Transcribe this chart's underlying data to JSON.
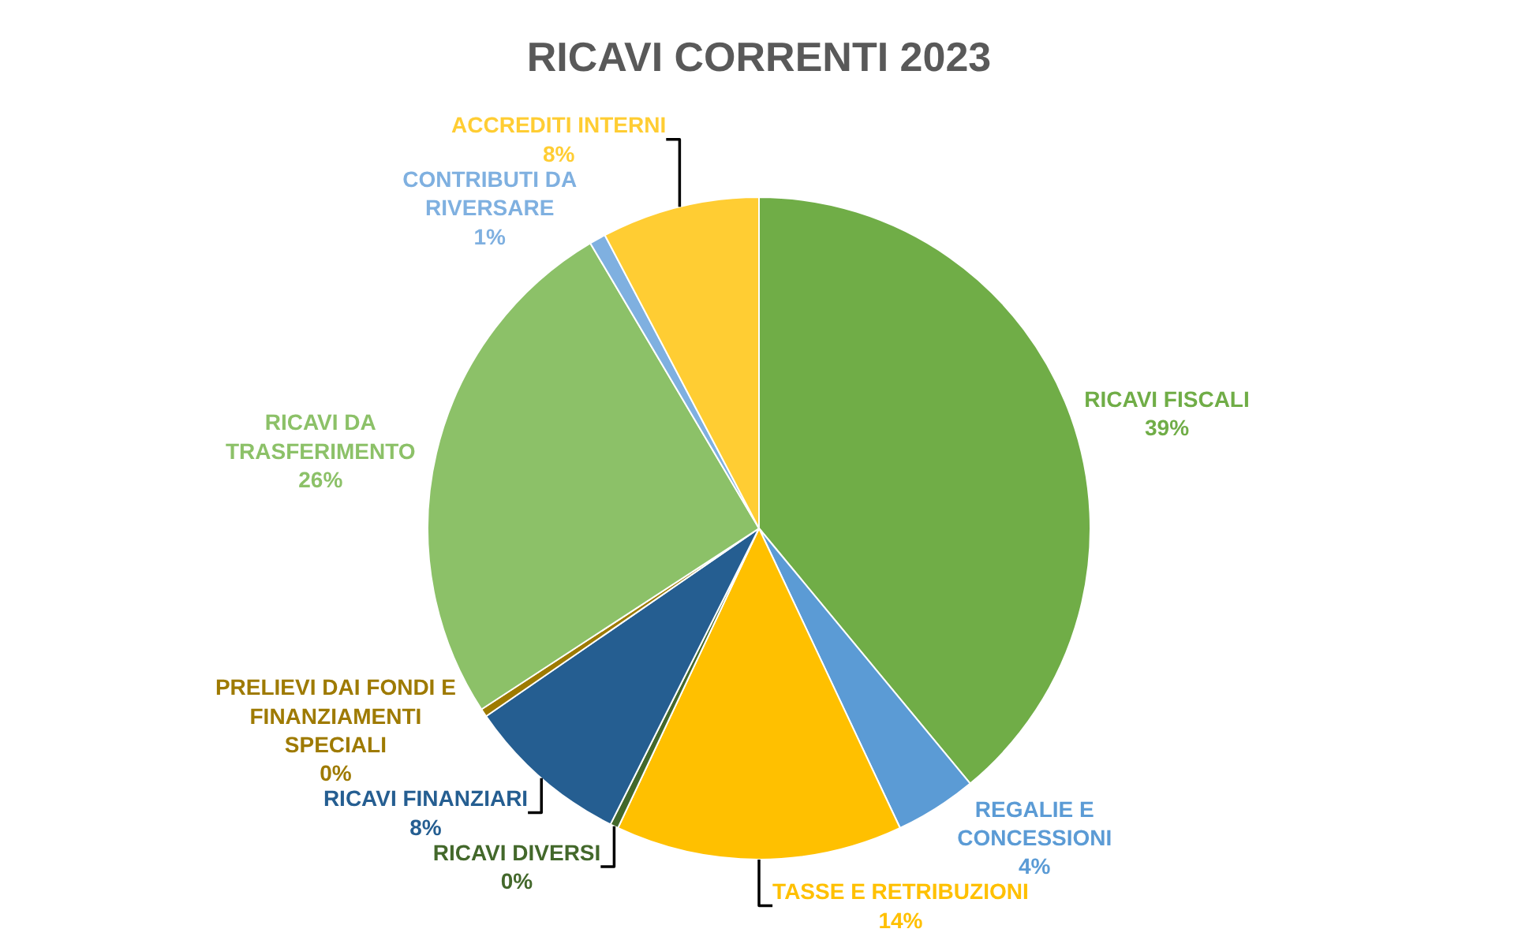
{
  "chart_data": {
    "type": "pie",
    "title": "RICAVI CORRENTI 2023",
    "categories": [
      "RICAVI FISCALI",
      "REGALIE E CONCESSIONI",
      "TASSE E RETRIBUZIONI",
      "RICAVI DIVERSI",
      "RICAVI FINANZIARI",
      "PRELIEVI DAI FONDI E FINANZIAMENTI SPECIALI",
      "RICAVI DA TRASFERIMENTO",
      "CONTRIBUTI DA RIVERSARE",
      "ACCREDITI INTERNI"
    ],
    "values": [
      39,
      4,
      14,
      0.4,
      8,
      0.4,
      25.7,
      0.8,
      7.7
    ],
    "value_labels": [
      "39%",
      "4%",
      "14%",
      "0%",
      "8%",
      "0%",
      "26%",
      "1%",
      "8%"
    ],
    "colors": [
      "#70ad47",
      "#5b9bd5",
      "#ffc000",
      "#43682b",
      "#255e91",
      "#9e7a00",
      "#8cc168",
      "#7fb0e0",
      "#ffcd33"
    ],
    "legend": false
  }
}
